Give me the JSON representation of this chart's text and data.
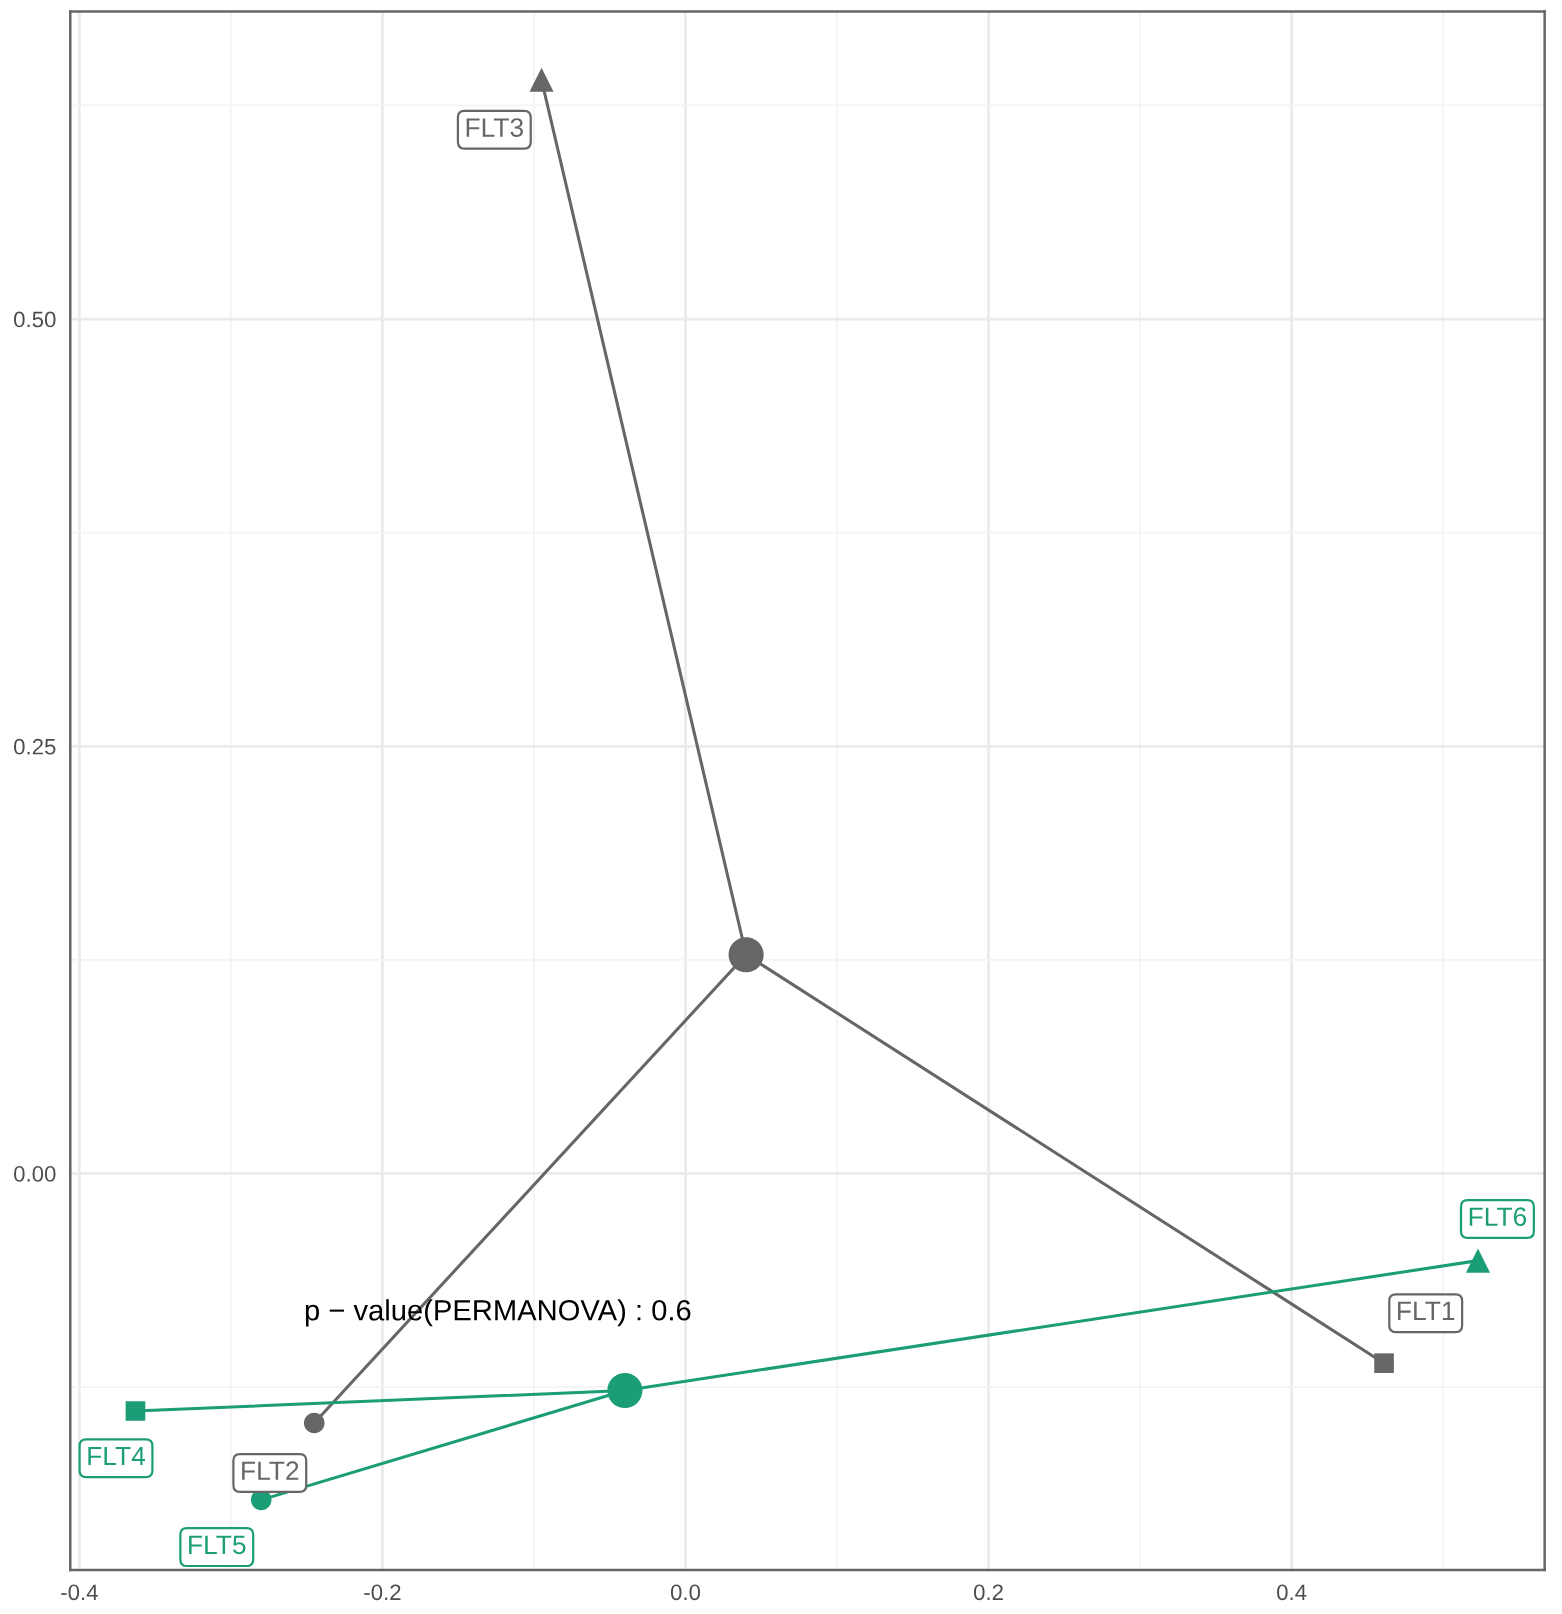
{
  "chart_data": {
    "type": "scatter",
    "xlim": [
      -0.406,
      0.567
    ],
    "ylim": [
      -0.232,
      0.68
    ],
    "xticks": [
      -0.4,
      {
        "value": -0.3,
        "label": null
      },
      -0.2,
      {
        "value": -0.1,
        "label": null
      },
      {
        "value": 0,
        "label": "0.0"
      },
      {
        "value": 0.1,
        "label": null
      },
      0.2,
      {
        "value": 0.3,
        "label": null
      },
      0.4,
      {
        "value": 0.5,
        "label": null
      }
    ],
    "yticks": [
      {
        "value": -0.125,
        "label": null
      },
      {
        "value": 0,
        "label": "0.00"
      },
      {
        "value": 0.125,
        "label": null
      },
      {
        "value": 0.25,
        "label": "0.25"
      },
      {
        "value": 0.375,
        "label": null
      },
      {
        "value": 0.5,
        "label": "0.50"
      },
      {
        "value": 0.625,
        "label": null
      }
    ],
    "grid": true,
    "series": [
      {
        "type": "line",
        "color": "#666666",
        "x": [
          0.461,
          0.04,
          -0.245,
          0.04,
          -0.095
        ],
        "values": [
          -0.111,
          0.128,
          -0.146,
          0.128,
          0.64
        ]
      },
      {
        "type": "line",
        "color": "#1b9e77",
        "x": [
          -0.363,
          -0.04,
          -0.28,
          -0.04,
          0.523
        ],
        "values": [
          -0.139,
          -0.127,
          -0.191,
          -0.127,
          -0.051
        ]
      },
      {
        "marker": "square",
        "x": [
          0.461,
          -0.363
        ],
        "values": [
          -0.111,
          -0.139
        ],
        "colors": [
          "#666666",
          "#1b9e77"
        ]
      },
      {
        "marker": "circle",
        "x": [
          -0.245,
          -0.28
        ],
        "values": [
          -0.146,
          -0.191
        ],
        "colors": [
          "#666666",
          "#1b9e77"
        ]
      },
      {
        "marker": "triangle",
        "x": [
          -0.095,
          0.523
        ],
        "values": [
          0.64,
          -0.051
        ],
        "colors": [
          "#666666",
          "#1b9e77"
        ]
      },
      {
        "type": "bubble",
        "marker": "circle",
        "x": [
          0.04,
          -0.04
        ],
        "values": [
          0.128,
          -0.127
        ],
        "sizes": [
          1,
          1
        ],
        "colors": [
          "#666666",
          "#1b9e77"
        ]
      }
    ],
    "annotations": [
      "p − value(PERMANOVA) : 0.6",
      {
        "text": "FLT1",
        "x": 0.461,
        "y": -0.111
      },
      {
        "text": "FLT2",
        "x": -0.245,
        "y": -0.146
      },
      {
        "text": "FLT3",
        "x": -0.095,
        "y": 0.64
      },
      {
        "text": "FLT4",
        "x": -0.363,
        "y": -0.139
      },
      {
        "text": "FLT5",
        "x": -0.28,
        "y": -0.191
      },
      {
        "text": "FLT6",
        "x": 0.523,
        "y": -0.051
      }
    ]
  }
}
